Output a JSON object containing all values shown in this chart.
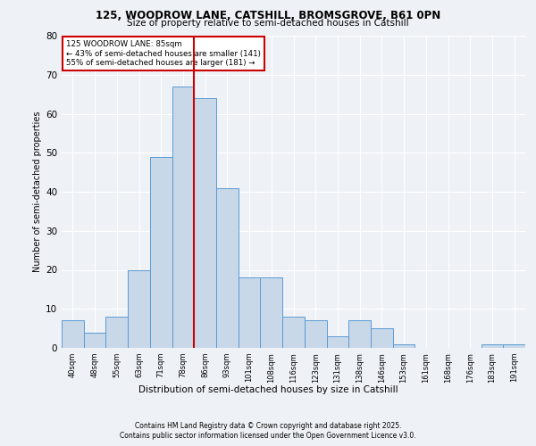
{
  "title1": "125, WOODROW LANE, CATSHILL, BROMSGROVE, B61 0PN",
  "title2": "Size of property relative to semi-detached houses in Catshill",
  "xlabel": "Distribution of semi-detached houses by size in Catshill",
  "ylabel": "Number of semi-detached properties",
  "bar_labels": [
    "40sqm",
    "48sqm",
    "55sqm",
    "63sqm",
    "71sqm",
    "78sqm",
    "86sqm",
    "93sqm",
    "101sqm",
    "108sqm",
    "116sqm",
    "123sqm",
    "131sqm",
    "138sqm",
    "146sqm",
    "153sqm",
    "161sqm",
    "168sqm",
    "176sqm",
    "183sqm",
    "191sqm"
  ],
  "bar_values": [
    7,
    4,
    8,
    20,
    49,
    67,
    64,
    41,
    18,
    18,
    8,
    7,
    3,
    7,
    5,
    1,
    0,
    0,
    0,
    1,
    1
  ],
  "bar_color": "#c8d8e8",
  "bar_edge_color": "#5b9bd5",
  "vline_color": "#cc0000",
  "annotation_title": "125 WOODROW LANE: 85sqm",
  "annotation_line1": "← 43% of semi-detached houses are smaller (141)",
  "annotation_line2": "55% of semi-detached houses are larger (181) →",
  "annotation_box_color": "#cc0000",
  "ylim": [
    0,
    80
  ],
  "yticks": [
    0,
    10,
    20,
    30,
    40,
    50,
    60,
    70,
    80
  ],
  "background_color": "#eef2f7",
  "grid_color": "#ffffff",
  "footer1": "Contains HM Land Registry data © Crown copyright and database right 2025.",
  "footer2": "Contains public sector information licensed under the Open Government Licence v3.0."
}
